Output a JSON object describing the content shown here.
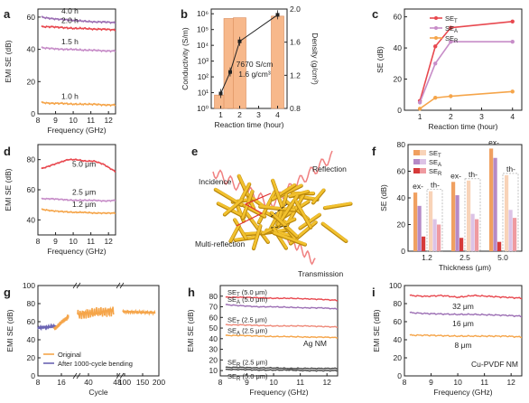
{
  "colors": {
    "red": "#e8484f",
    "salmon": "#ee8a7a",
    "orange": "#f5a54a",
    "purple": "#9c6fb4",
    "pink": "#c78dc8",
    "blue": "#6b64b3",
    "bar": "#f7b88b",
    "gray": "#444444"
  },
  "chart_data": [
    {
      "panel": "a",
      "type": "line",
      "xlabel": "Frequency (GHz)",
      "ylabel": "EMI SE (dB)",
      "xlim": [
        8,
        12.4
      ],
      "ylim": [
        0,
        65
      ],
      "xticks": [
        "8",
        "9",
        "10",
        "11",
        "12"
      ],
      "yticks": [
        "0",
        "20",
        "40",
        "60"
      ],
      "series": [
        {
          "name": "4.0 h",
          "color": "purple",
          "x": [
            8.2,
            8.8,
            9.4,
            10.0,
            10.6,
            11.2,
            11.8,
            12.4
          ],
          "y": [
            60,
            59,
            58.5,
            58,
            57.5,
            57,
            57,
            56.5
          ]
        },
        {
          "name": "2.0 h",
          "color": "red",
          "x": [
            8.2,
            8.8,
            9.4,
            10.0,
            10.6,
            11.2,
            11.8,
            12.4
          ],
          "y": [
            54,
            54,
            53.5,
            53,
            53,
            52.5,
            52.5,
            52
          ]
        },
        {
          "name": "1.5 h",
          "color": "pink",
          "x": [
            8.2,
            8.8,
            9.4,
            10.0,
            10.6,
            11.2,
            11.8,
            12.4
          ],
          "y": [
            41,
            40.5,
            40,
            40,
            39.5,
            39.5,
            39,
            39
          ]
        },
        {
          "name": "1.0 h",
          "color": "orange",
          "x": [
            8.2,
            8.8,
            9.4,
            10.0,
            10.6,
            11.2,
            11.8,
            12.4
          ],
          "y": [
            7,
            6.5,
            6.5,
            6,
            6,
            6,
            5.5,
            5.5
          ]
        }
      ]
    },
    {
      "panel": "b",
      "type": "bar",
      "xlabel": "Reaction time (hour)",
      "ylabel": "Conductivity (S/m)",
      "y2label": "Density (g/cm³)",
      "xlim": [
        0.5,
        4.5
      ],
      "ylim_log": [
        0,
        6.3
      ],
      "y2lim": [
        0.8,
        2.0
      ],
      "xticks": [
        "1",
        "2",
        "3",
        "4"
      ],
      "yticks": [
        "10⁰",
        "10¹",
        "10²",
        "10³",
        "10⁴",
        "10⁵",
        "10⁶"
      ],
      "y2ticks": [
        "0.8",
        "1.2",
        "1.6",
        "2.0"
      ],
      "bars_log10": [
        {
          "x": 1,
          "v": 0.85
        },
        {
          "x": 1.5,
          "v": 5.7
        },
        {
          "x": 2,
          "v": 5.75
        },
        {
          "x": 4,
          "v": 5.85
        }
      ],
      "density": {
        "x": [
          1,
          1.5,
          2,
          4
        ],
        "y": [
          0.98,
          1.24,
          1.61,
          1.93
        ]
      },
      "annotation": [
        "7670 S/cm",
        "1.6 g/cm³"
      ]
    },
    {
      "panel": "c",
      "type": "line",
      "xlabel": "Reaction time (hour)",
      "ylabel": "SE (dB)",
      "xlim": [
        0.5,
        4.3
      ],
      "ylim": [
        0,
        65
      ],
      "xticks": [
        "1",
        "2",
        "3",
        "4"
      ],
      "yticks": [
        "0",
        "20",
        "40",
        "60"
      ],
      "series": [
        {
          "name": "SE_T",
          "color": "red",
          "x": [
            1,
            1.5,
            2,
            4
          ],
          "y": [
            6,
            41,
            53,
            57
          ]
        },
        {
          "name": "SE_A",
          "color": "pink",
          "x": [
            1,
            1.5,
            2,
            4
          ],
          "y": [
            5,
            30,
            44,
            44
          ]
        },
        {
          "name": "SE_R",
          "color": "orange",
          "x": [
            1,
            1.5,
            2,
            4
          ],
          "y": [
            1,
            8,
            9,
            12
          ]
        }
      ]
    },
    {
      "panel": "d",
      "type": "line",
      "xlabel": "Frequency (GHz)",
      "ylabel": "EMI SE (dB)",
      "xlim": [
        8,
        12.4
      ],
      "ylim": [
        30,
        90
      ],
      "xticks": [
        "8",
        "9",
        "10",
        "11",
        "12"
      ],
      "yticks": [
        "40",
        "60",
        "80"
      ],
      "series": [
        {
          "name": "5.0 μm",
          "color": "red",
          "x": [
            8.2,
            8.7,
            9.2,
            9.7,
            10.2,
            10.7,
            11.2,
            11.7,
            12.4
          ],
          "y": [
            74,
            76,
            78,
            80,
            80,
            79,
            79,
            77,
            72
          ]
        },
        {
          "name": "2.5 μm",
          "color": "pink",
          "x": [
            8.2,
            8.8,
            9.4,
            10.0,
            10.6,
            11.2,
            11.8,
            12.4
          ],
          "y": [
            54,
            54,
            53.5,
            53,
            53,
            53,
            52.5,
            53
          ]
        },
        {
          "name": "1.2 μm",
          "color": "orange",
          "x": [
            8.2,
            8.8,
            9.4,
            10.0,
            10.6,
            11.2,
            11.8,
            12.4
          ],
          "y": [
            47,
            46,
            45.5,
            45,
            45,
            44.5,
            44.5,
            44.5
          ]
        }
      ]
    },
    {
      "panel": "e",
      "type": "schematic",
      "labels": [
        "Incidence",
        "Reflection",
        "Multi-reflection",
        "Transmission"
      ]
    },
    {
      "panel": "f",
      "type": "bar",
      "xlabel": "Thickness (μm)",
      "ylabel": "SE (dB)",
      "ylim": [
        0,
        80
      ],
      "yticks": [
        "0",
        "20",
        "40",
        "60",
        "80"
      ],
      "categories": [
        "1.2",
        "2.5",
        "5.0"
      ],
      "legend": [
        "SE_T",
        "SE_A",
        "SE_R"
      ],
      "groups": [
        {
          "cat": "1.2",
          "ex": [
            44,
            34,
            11
          ],
          "th": [
            45,
            24,
            20
          ]
        },
        {
          "cat": "2.5",
          "ex": [
            52,
            42,
            10
          ],
          "th": [
            53,
            28,
            24
          ]
        },
        {
          "cat": "5.0",
          "ex": [
            77,
            70,
            7
          ],
          "th": [
            57,
            31,
            25
          ]
        }
      ],
      "group_labels": [
        "ex-",
        "th-"
      ]
    },
    {
      "panel": "g",
      "type": "line",
      "xlabel": "Cycle",
      "ylabel": "EMI SE (dB)",
      "ylim": [
        0,
        100
      ],
      "yticks": [
        "0",
        "20",
        "40",
        "60",
        "80",
        "100"
      ],
      "xticks": [
        "8",
        "16",
        "40",
        "48",
        "100",
        "150",
        "200"
      ],
      "series": [
        {
          "name": "Original",
          "color": "orange"
        },
        {
          "name": "After 1000-cycle bending",
          "color": "blue"
        }
      ]
    },
    {
      "panel": "h",
      "type": "line",
      "xlabel": "Frequency (GHz)",
      "ylabel": "EMI SE (dB)",
      "xlim": [
        8,
        12.4
      ],
      "ylim": [
        5,
        90
      ],
      "xticks": [
        "8",
        "9",
        "10",
        "11",
        "12"
      ],
      "yticks": [
        "10",
        "20",
        "30",
        "40",
        "50",
        "60",
        "70",
        "80"
      ],
      "series": [
        {
          "name": "SE_T (5.0 μm)",
          "color": "red",
          "y": [
            79,
            79,
            78.5,
            78,
            78,
            77.5,
            77,
            76
          ]
        },
        {
          "name": "SE_A (5.0 μm)",
          "color": "purple",
          "y": [
            72,
            71,
            70,
            70,
            69.5,
            69,
            69,
            68
          ]
        },
        {
          "name": "SE_T (2.5 μm)",
          "color": "salmon",
          "y": [
            53,
            53,
            52.5,
            52,
            52,
            52,
            51.5,
            51
          ]
        },
        {
          "name": "SE_A (2.5 μm)",
          "color": "orange",
          "y": [
            43,
            43,
            42.5,
            42,
            42,
            41.5,
            41.5,
            41
          ]
        },
        {
          "name": "SE_R (2.5 μm)",
          "color": "gray",
          "y": [
            13,
            13,
            12.5,
            12.5,
            12,
            12,
            12,
            12
          ]
        },
        {
          "name": "SE_R (5.0 μm)",
          "color": "gray",
          "y": [
            11,
            11,
            10.5,
            10.5,
            10.5,
            10,
            10,
            10
          ]
        }
      ],
      "annotation": "Ag NM"
    },
    {
      "panel": "i",
      "type": "line",
      "xlabel": "Frequency (GHz)",
      "ylabel": "EMI SE (dB)",
      "xlim": [
        8,
        12.4
      ],
      "ylim": [
        0,
        100
      ],
      "xticks": [
        "8",
        "9",
        "10",
        "11",
        "12"
      ],
      "yticks": [
        "0",
        "20",
        "40",
        "60",
        "80",
        "100"
      ],
      "series": [
        {
          "name": "32 μm",
          "color": "red",
          "y": [
            89,
            88,
            89,
            87,
            89,
            88,
            87,
            86
          ]
        },
        {
          "name": "16 μm",
          "color": "purple",
          "y": [
            70,
            69,
            68.5,
            68,
            68,
            67.5,
            67,
            66
          ]
        },
        {
          "name": "8 μm",
          "color": "orange",
          "y": [
            45,
            45,
            44.5,
            44,
            44,
            44,
            44,
            43
          ]
        }
      ],
      "annotation": "Cu-PVDF NM"
    }
  ]
}
